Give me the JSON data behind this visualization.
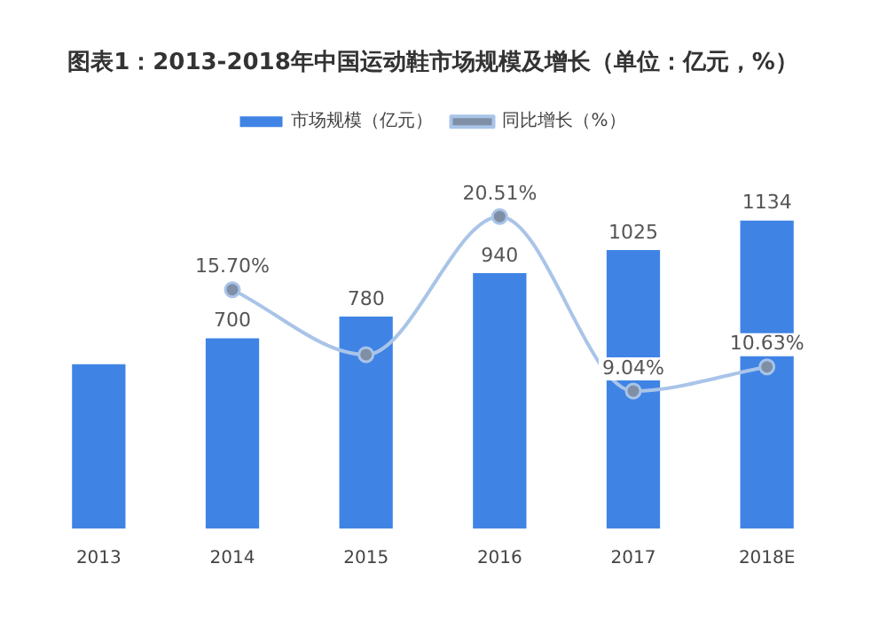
{
  "chart_data": {
    "type": "bar",
    "title": "图表1：2013-2018年中国运动鞋市场规模及增长（单位：亿元，%）",
    "categories": [
      "2013",
      "2014",
      "2015",
      "2016",
      "2017",
      "2018E"
    ],
    "series": [
      {
        "name": "市场规模（亿元）",
        "color": "#3f84e5",
        "values": [
          605,
          700,
          780,
          940,
          1025,
          1134
        ],
        "value_labels": [
          null,
          "700",
          "780",
          "940",
          "1025",
          "1134"
        ]
      },
      {
        "name": "同比增长（%）",
        "type": "line",
        "axis": "y2",
        "color": "#a9c4e8",
        "marker": "circle",
        "values": [
          null,
          15.7,
          11.43,
          20.51,
          9.04,
          10.63
        ],
        "value_labels": [
          null,
          "15.70%",
          null,
          "20.51%",
          "9.04%",
          "10.63%"
        ]
      }
    ],
    "tick_labels": "x",
    "grid": false,
    "legend": "top"
  }
}
